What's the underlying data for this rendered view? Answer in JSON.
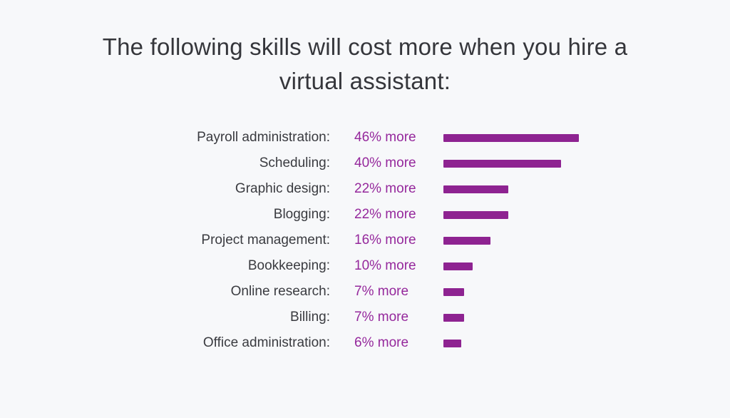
{
  "title": "The following skills will cost more when you hire a virtual assistant:",
  "colors": {
    "background": "#F7F8FA",
    "title_text": "#35363B",
    "label_text": "#3A3B40",
    "accent_value_text": "#95289C",
    "accent_bar": "#8E2391"
  },
  "chart_data": {
    "type": "bar",
    "orientation": "horizontal",
    "title": "The following skills will cost more when you hire a virtual assistant:",
    "categories": [
      "Payroll administration",
      "Scheduling",
      "Graphic design",
      "Blogging",
      "Project management",
      "Bookkeeping",
      "Online research",
      "Billing",
      "Office administration"
    ],
    "values": [
      46,
      40,
      22,
      22,
      16,
      10,
      7,
      7,
      6
    ],
    "value_suffix": "% more",
    "label_suffix": ":",
    "xlabel": "",
    "ylabel": "",
    "xlim": [
      0,
      46
    ],
    "grid": false,
    "legend": "none"
  }
}
